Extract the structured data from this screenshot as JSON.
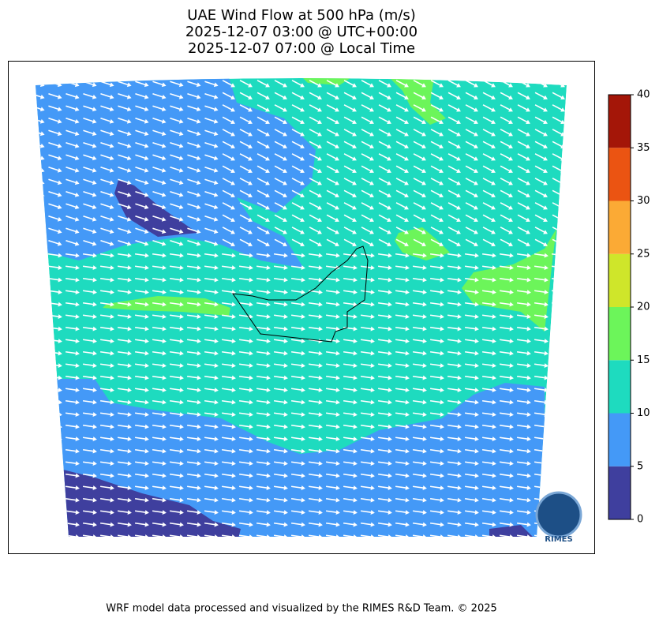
{
  "header": {
    "title_lines": [
      "UAE Wind Flow at 500 hPa (m/s)",
      "2025-12-07 03:00 @ UTC+00:00",
      "2025-12-07 07:00 @ Local Time"
    ]
  },
  "colorbar": {
    "levels": [
      0,
      5,
      10,
      15,
      20,
      25,
      30,
      35,
      40
    ],
    "colors": [
      "#3f3f9e",
      "#4499f7",
      "#1edbbf",
      "#6cf55a",
      "#cfe62a",
      "#fbaa35",
      "#eb5412",
      "#a41608"
    ]
  },
  "logo": "RIMES",
  "footer": "WRF model data processed and visualized by the RIMES R&D Team. © 2025"
}
